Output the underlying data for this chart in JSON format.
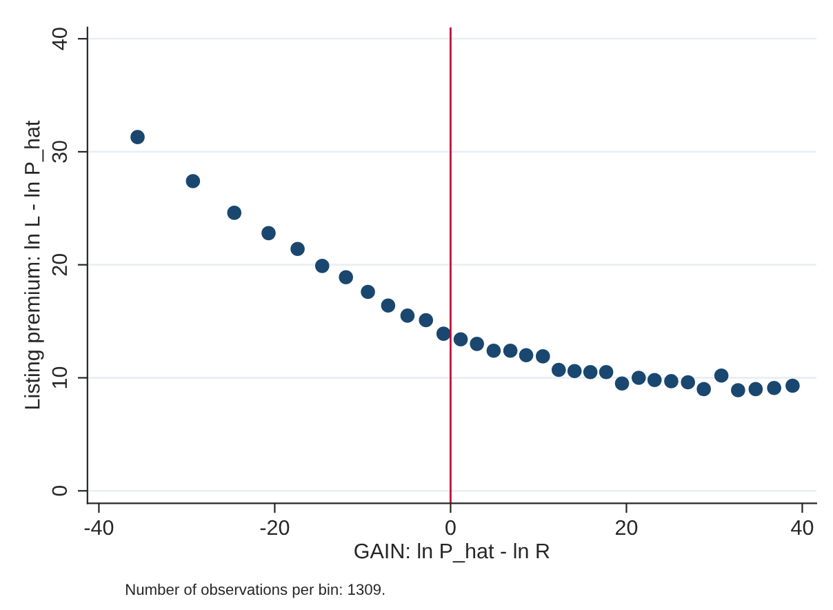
{
  "chart_data": {
    "type": "scatter",
    "xlabel": "GAIN: ln P_hat - ln R",
    "ylabel": "Listing premium: ln L - ln P_hat",
    "x": [
      -35.6,
      -29.3,
      -24.6,
      -20.7,
      -17.4,
      -14.6,
      -11.9,
      -9.4,
      -7.1,
      -4.9,
      -2.8,
      -0.8,
      1.15,
      3.0,
      4.9,
      6.8,
      8.6,
      10.5,
      12.3,
      14.1,
      15.9,
      17.7,
      19.5,
      21.4,
      23.2,
      25.1,
      27.0,
      28.8,
      30.8,
      32.7,
      34.7,
      36.8,
      38.9
    ],
    "series": [
      {
        "color": "#1a476f",
        "values": [
          31.3,
          27.4,
          24.6,
          22.8,
          21.4,
          19.9,
          18.9,
          17.6,
          16.4,
          15.5,
          15.1,
          13.9,
          13.4,
          13.0,
          12.4,
          12.4,
          12.0,
          11.9,
          10.7,
          10.6,
          10.5,
          10.5,
          9.5,
          10.0,
          9.8,
          9.7,
          9.6,
          9.0,
          10.2,
          8.9,
          9.0,
          9.1,
          9.3
        ]
      }
    ],
    "xlim": [
      -41.3,
      41.6
    ],
    "ylim": [
      -1.1,
      41
    ],
    "xticks": [
      -40,
      -20,
      0,
      20,
      40
    ],
    "yticks": [
      0,
      10,
      20,
      30,
      40
    ],
    "grid": "y",
    "marker": "circle",
    "legend": false,
    "ref_lines": [
      {
        "axis": "x",
        "value": 0,
        "color": "#c10534"
      }
    ],
    "annotations": [
      "Number of observations per bin: 1309."
    ]
  }
}
